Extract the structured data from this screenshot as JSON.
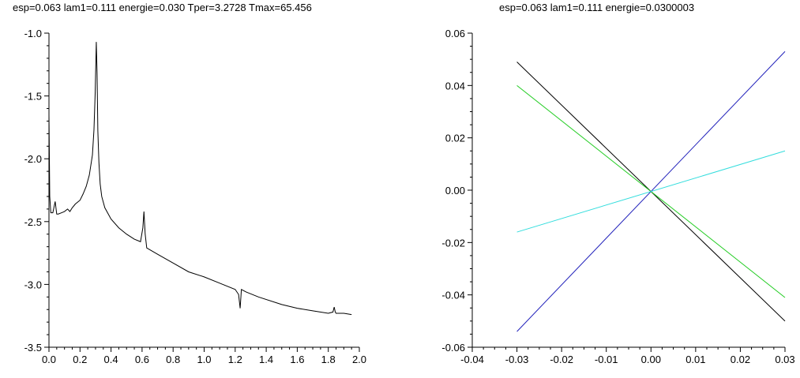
{
  "chart_data": [
    {
      "type": "line",
      "title": "esp=0.063  lam1=0.111 energie=0.030 Tper=3.2728 Tmax=65.456",
      "xlabel": "",
      "ylabel": "",
      "xlim": [
        0.0,
        2.0
      ],
      "ylim": [
        -3.5,
        -1.0
      ],
      "xticks": [
        "0.0",
        "0.2",
        "0.4",
        "0.6",
        "0.8",
        "1.0",
        "1.2",
        "1.4",
        "1.6",
        "1.8",
        "2.0"
      ],
      "yticks": [
        "-1.0",
        "-1.5",
        "-2.0",
        "-2.5",
        "-3.0",
        "-3.5"
      ],
      "grid": false,
      "series": [
        {
          "color": "#000000",
          "x": [
            0.0,
            0.005,
            0.012,
            0.025,
            0.04,
            0.05,
            0.06,
            0.08,
            0.1,
            0.12,
            0.135,
            0.15,
            0.17,
            0.2,
            0.22,
            0.24,
            0.26,
            0.28,
            0.29,
            0.298,
            0.305,
            0.31,
            0.315,
            0.322,
            0.33,
            0.34,
            0.36,
            0.4,
            0.45,
            0.5,
            0.55,
            0.59,
            0.605,
            0.612,
            0.62,
            0.63,
            0.7,
            0.8,
            0.9,
            1.0,
            1.1,
            1.2,
            1.222,
            1.232,
            1.24,
            1.27,
            1.35,
            1.5,
            1.6,
            1.7,
            1.8,
            1.83,
            1.838,
            1.845,
            1.85,
            1.9,
            1.95
          ],
          "y": [
            -1.65,
            -2.3,
            -2.43,
            -2.43,
            -2.34,
            -2.44,
            -2.44,
            -2.43,
            -2.42,
            -2.4,
            -2.42,
            -2.39,
            -2.36,
            -2.33,
            -2.28,
            -2.22,
            -2.13,
            -1.97,
            -1.77,
            -1.47,
            -1.07,
            -1.32,
            -1.78,
            -2.03,
            -2.2,
            -2.3,
            -2.39,
            -2.48,
            -2.55,
            -2.6,
            -2.64,
            -2.66,
            -2.55,
            -2.42,
            -2.6,
            -2.71,
            -2.76,
            -2.83,
            -2.9,
            -2.94,
            -2.99,
            -3.04,
            -3.08,
            -3.19,
            -3.04,
            -3.06,
            -3.1,
            -3.16,
            -3.19,
            -3.21,
            -3.23,
            -3.22,
            -3.18,
            -3.22,
            -3.23,
            -3.23,
            -3.24
          ]
        }
      ]
    },
    {
      "type": "line",
      "title": "esp=0.063  lam1=0.111 energie=0.0300003",
      "xlabel": "",
      "ylabel": "",
      "xlim": [
        -0.04,
        0.03
      ],
      "ylim": [
        -0.06,
        0.06
      ],
      "xticks": [
        "-0.04",
        "-0.03",
        "-0.02",
        "-0.01",
        "0.00",
        "0.01",
        "0.02",
        "0.03"
      ],
      "yticks": [
        "0.06",
        "0.04",
        "0.02",
        "0.00",
        "-0.02",
        "-0.04",
        "-0.06"
      ],
      "grid": false,
      "series": [
        {
          "color": "#000000",
          "x": [
            -0.03,
            0.03
          ],
          "y": [
            0.049,
            -0.05
          ]
        },
        {
          "color": "#22cc22",
          "x": [
            -0.03,
            0.03
          ],
          "y": [
            0.04,
            -0.041
          ]
        },
        {
          "color": "#2222bb",
          "x": [
            -0.03,
            0.03
          ],
          "y": [
            -0.054,
            0.053
          ]
        },
        {
          "color": "#33dddd",
          "x": [
            -0.03,
            0.03
          ],
          "y": [
            -0.016,
            0.015
          ]
        }
      ]
    }
  ]
}
